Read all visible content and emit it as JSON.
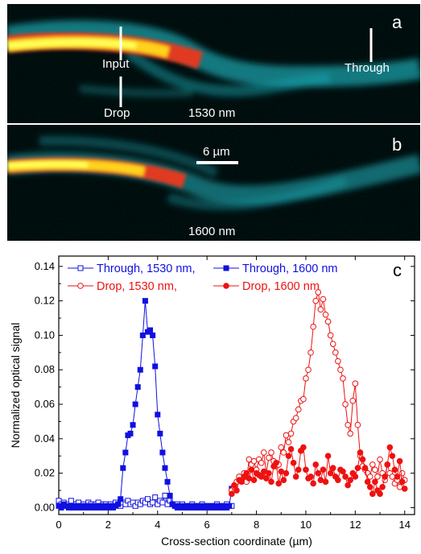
{
  "panel_a": {
    "letter": "a",
    "labels": {
      "input": "Input",
      "drop": "Drop",
      "through": "Through",
      "wavelength": "1530 nm"
    }
  },
  "panel_b": {
    "letter": "b",
    "labels": {
      "scale": "6 µm",
      "wavelength": "1600 nm"
    }
  },
  "chart_data": {
    "type": "scatter",
    "panel_letter": "c",
    "xlabel": "Cross-section coordinate (µm)",
    "ylabel": "Normalized optical signal",
    "xlim": [
      0,
      14.4
    ],
    "ylim": [
      -0.004,
      0.146
    ],
    "xticks": [
      0,
      2,
      4,
      6,
      8,
      10,
      12,
      14
    ],
    "yticks": [
      0.0,
      0.02,
      0.04,
      0.06,
      0.08,
      0.1,
      0.12,
      0.14
    ],
    "legend_position": "top",
    "colors": {
      "blue": "#1010e0",
      "red": "#ee1111"
    },
    "series": [
      {
        "name": "Through, 1530 nm,",
        "color": "#1010e0",
        "marker": "open-square",
        "x": [
          0.0,
          0.1,
          0.2,
          0.3,
          0.4,
          0.5,
          0.6,
          0.7,
          0.8,
          0.9,
          1.0,
          1.1,
          1.2,
          1.3,
          1.4,
          1.5,
          1.6,
          1.7,
          1.8,
          1.9,
          2.0,
          2.1,
          2.2,
          2.3,
          2.4,
          2.5,
          2.6,
          2.7,
          2.8,
          2.9,
          3.0,
          3.1,
          3.2,
          3.3,
          3.4,
          3.5,
          3.6,
          3.7,
          3.8,
          3.9,
          4.0,
          4.1,
          4.2,
          4.3,
          4.4,
          4.5,
          4.6,
          4.7,
          4.8,
          4.9,
          5.0,
          5.2,
          5.4,
          5.6,
          5.8,
          6.0,
          6.2,
          6.4,
          6.6,
          6.8,
          7.0
        ],
        "y": [
          0.004,
          0.002,
          0.003,
          0.001,
          0.002,
          0.004,
          0.001,
          0.002,
          0.003,
          0.001,
          0.002,
          0.001,
          0.003,
          0.002,
          0.001,
          0.002,
          0.003,
          0.001,
          0.002,
          0.002,
          0.001,
          0.002,
          0.001,
          0.003,
          0.002,
          0.001,
          0.003,
          0.002,
          0.004,
          0.002,
          0.003,
          0.001,
          0.003,
          0.002,
          0.004,
          0.003,
          0.005,
          0.002,
          0.003,
          0.006,
          0.002,
          0.004,
          0.003,
          0.007,
          0.002,
          0.004,
          0.002,
          0.001,
          0.002,
          0.001,
          0.002,
          0.001,
          0.002,
          0.001,
          0.002,
          0.001,
          0.001,
          0.002,
          0.001,
          0.002,
          0.001
        ]
      },
      {
        "name": "Through, 1600 nm",
        "color": "#1010e0",
        "marker": "filled-square",
        "x": [
          0.0,
          0.1,
          0.2,
          0.3,
          0.4,
          0.5,
          0.6,
          0.7,
          0.8,
          0.9,
          1.0,
          1.1,
          1.2,
          1.3,
          1.4,
          1.5,
          1.6,
          1.7,
          1.8,
          1.9,
          2.0,
          2.1,
          2.2,
          2.3,
          2.4,
          2.5,
          2.6,
          2.7,
          2.8,
          2.9,
          3.0,
          3.1,
          3.2,
          3.3,
          3.4,
          3.5,
          3.6,
          3.7,
          3.8,
          3.9,
          4.0,
          4.1,
          4.2,
          4.3,
          4.4,
          4.5,
          4.6,
          4.7,
          4.8,
          4.9,
          5.0,
          5.1,
          5.2,
          5.3,
          5.4,
          5.5,
          5.6,
          5.7,
          5.8,
          5.9,
          6.0,
          6.1,
          6.2,
          6.3,
          6.4,
          6.5,
          6.6,
          6.7,
          6.8,
          6.9,
          7.0
        ],
        "y": [
          0.001,
          0.0,
          0.002,
          0.001,
          0.0,
          0.001,
          0.0,
          0.001,
          0.0,
          0.001,
          0.0,
          0.001,
          0.0,
          0.001,
          0.0,
          0.001,
          0.0,
          0.001,
          0.0,
          0.001,
          0.0,
          0.001,
          0.0,
          0.001,
          0.002,
          0.005,
          0.023,
          0.032,
          0.042,
          0.043,
          0.048,
          0.06,
          0.07,
          0.08,
          0.1,
          0.12,
          0.102,
          0.103,
          0.1,
          0.082,
          0.054,
          0.043,
          0.032,
          0.023,
          0.015,
          0.007,
          0.002,
          0.001,
          0.0,
          0.001,
          0.0,
          0.001,
          0.0,
          0.001,
          0.0,
          0.001,
          0.0,
          0.001,
          0.0,
          0.001,
          0.0,
          0.001,
          0.0,
          0.001,
          0.0,
          0.001,
          0.0,
          0.001,
          0.0,
          0.001,
          0.011
        ]
      },
      {
        "name": "Drop, 1530 nm,",
        "color": "#ee1111",
        "marker": "open-circle",
        "x": [
          7.0,
          7.1,
          7.2,
          7.3,
          7.4,
          7.5,
          7.6,
          7.7,
          7.8,
          7.9,
          8.0,
          8.1,
          8.2,
          8.3,
          8.4,
          8.5,
          8.6,
          8.7,
          8.8,
          8.9,
          9.0,
          9.1,
          9.2,
          9.3,
          9.4,
          9.5,
          9.6,
          9.7,
          9.8,
          9.9,
          10.0,
          10.1,
          10.2,
          10.3,
          10.4,
          10.5,
          10.6,
          10.7,
          10.8,
          10.9,
          11.0,
          11.1,
          11.2,
          11.3,
          11.4,
          11.5,
          11.6,
          11.7,
          11.8,
          11.9,
          12.0,
          12.1,
          12.2,
          12.3,
          12.4,
          12.5,
          12.6,
          12.7,
          12.8,
          12.9,
          13.0,
          13.1,
          13.2,
          13.3,
          13.4,
          13.5,
          13.6,
          13.7,
          13.8,
          13.9,
          14.0
        ],
        "y": [
          0.01,
          0.012,
          0.015,
          0.018,
          0.016,
          0.02,
          0.015,
          0.028,
          0.025,
          0.027,
          0.022,
          0.028,
          0.026,
          0.032,
          0.02,
          0.029,
          0.032,
          0.027,
          0.024,
          0.025,
          0.035,
          0.032,
          0.042,
          0.038,
          0.043,
          0.05,
          0.052,
          0.057,
          0.062,
          0.063,
          0.075,
          0.08,
          0.09,
          0.105,
          0.12,
          0.125,
          0.115,
          0.121,
          0.112,
          0.108,
          0.1,
          0.095,
          0.09,
          0.085,
          0.08,
          0.075,
          0.06,
          0.048,
          0.043,
          0.062,
          0.072,
          0.048,
          0.03,
          0.024,
          0.022,
          0.02,
          0.018,
          0.025,
          0.022,
          0.018,
          0.028,
          0.02,
          0.016,
          0.025,
          0.02,
          0.018,
          0.014,
          0.016,
          0.012,
          0.02,
          0.016
        ]
      },
      {
        "name": "Drop, 1600 nm",
        "color": "#ee1111",
        "marker": "filled-circle",
        "x": [
          7.0,
          7.1,
          7.2,
          7.3,
          7.4,
          7.5,
          7.6,
          7.7,
          7.8,
          7.9,
          8.0,
          8.1,
          8.2,
          8.3,
          8.4,
          8.5,
          8.6,
          8.7,
          8.8,
          8.9,
          9.0,
          9.1,
          9.2,
          9.3,
          9.4,
          9.5,
          9.6,
          9.7,
          9.8,
          9.9,
          10.0,
          10.1,
          10.2,
          10.3,
          10.4,
          10.5,
          10.6,
          10.7,
          10.8,
          10.9,
          11.0,
          11.1,
          11.2,
          11.3,
          11.4,
          11.5,
          11.6,
          11.7,
          11.8,
          11.9,
          12.0,
          12.1,
          12.2,
          12.3,
          12.4,
          12.5,
          12.6,
          12.7,
          12.8,
          12.9,
          13.0,
          13.1,
          13.2,
          13.3,
          13.4,
          13.5,
          13.6,
          13.7,
          13.8,
          13.9,
          14.0
        ],
        "y": [
          0.008,
          0.013,
          0.01,
          0.016,
          0.015,
          0.018,
          0.02,
          0.017,
          0.022,
          0.016,
          0.02,
          0.019,
          0.018,
          0.021,
          0.017,
          0.02,
          0.015,
          0.024,
          0.026,
          0.014,
          0.021,
          0.016,
          0.02,
          0.03,
          0.034,
          0.026,
          0.018,
          0.022,
          0.033,
          0.035,
          0.022,
          0.017,
          0.018,
          0.014,
          0.025,
          0.02,
          0.016,
          0.022,
          0.015,
          0.03,
          0.02,
          0.023,
          0.018,
          0.016,
          0.022,
          0.021,
          0.018,
          0.013,
          0.016,
          0.02,
          0.018,
          0.023,
          0.032,
          0.028,
          0.023,
          0.015,
          0.012,
          0.008,
          0.015,
          0.01,
          0.008,
          0.012,
          0.018,
          0.025,
          0.035,
          0.03,
          0.022,
          0.018,
          0.027,
          0.015,
          0.011
        ]
      }
    ]
  }
}
